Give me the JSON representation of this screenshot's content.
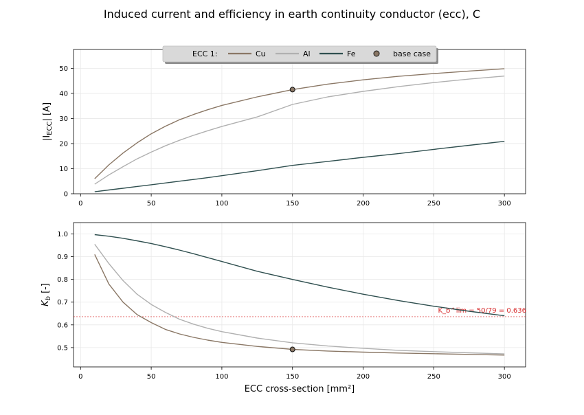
{
  "figure": {
    "title": "Induced current and efficiency in earth continuity conductor (ecc), C",
    "xlabel": "ECC cross-section  [mm²]"
  },
  "legend": {
    "title": "ECC 1:",
    "entries": [
      {
        "label": "Cu",
        "color": "#8a7765",
        "kind": "line"
      },
      {
        "label": "Al",
        "color": "#b0b0b0",
        "kind": "line"
      },
      {
        "label": "Fe",
        "color": "#2f4f4f",
        "kind": "line"
      },
      {
        "label": "base case",
        "color": "#8a7765",
        "kind": "marker"
      }
    ]
  },
  "chart_data": [
    {
      "type": "line",
      "ylabel": "|I_ECC|  [A]",
      "xlim": [
        -5,
        315
      ],
      "ylim": [
        0,
        57.5
      ],
      "xticks": [
        0,
        50,
        100,
        150,
        200,
        250,
        300
      ],
      "yticks": [
        0,
        10,
        20,
        30,
        40,
        50
      ],
      "x": [
        10,
        20,
        30,
        40,
        50,
        60,
        70,
        80,
        90,
        100,
        125,
        150,
        175,
        200,
        225,
        250,
        275,
        300
      ],
      "series": [
        {
          "name": "Cu",
          "color": "#8a7765",
          "values": [
            6.0,
            11.5,
            16.2,
            20.3,
            23.9,
            26.9,
            29.5,
            31.6,
            33.5,
            35.2,
            38.6,
            41.5,
            43.7,
            45.4,
            46.8,
            47.9,
            48.9,
            49.8
          ]
        },
        {
          "name": "Al",
          "color": "#b0b0b0",
          "values": [
            3.8,
            7.5,
            10.8,
            13.9,
            16.6,
            19.1,
            21.3,
            23.3,
            25.1,
            26.8,
            30.6,
            35.6,
            38.6,
            40.8,
            42.7,
            44.3,
            45.7,
            46.9
          ]
        },
        {
          "name": "Fe",
          "color": "#2f4f4f",
          "values": [
            0.8,
            1.5,
            2.2,
            2.9,
            3.6,
            4.3,
            5.0,
            5.7,
            6.4,
            7.2,
            9.2,
            11.3,
            12.9,
            14.5,
            16.0,
            17.7,
            19.3,
            20.9
          ]
        }
      ],
      "base_case": {
        "x": 150,
        "y": 41.5
      }
    },
    {
      "type": "line",
      "ylabel": "K_b  [-]",
      "xlim": [
        -5,
        315
      ],
      "ylim": [
        0.415,
        1.05
      ],
      "xticks": [
        0,
        50,
        100,
        150,
        200,
        250,
        300
      ],
      "yticks": [
        0.5,
        0.6,
        0.7,
        0.8,
        0.9,
        1.0
      ],
      "x": [
        10,
        20,
        30,
        40,
        50,
        60,
        70,
        80,
        90,
        100,
        125,
        150,
        175,
        200,
        225,
        250,
        275,
        300
      ],
      "series": [
        {
          "name": "Cu",
          "color": "#8a7765",
          "values": [
            0.91,
            0.78,
            0.7,
            0.645,
            0.61,
            0.58,
            0.56,
            0.545,
            0.533,
            0.523,
            0.505,
            0.492,
            0.485,
            0.48,
            0.476,
            0.473,
            0.47,
            0.467
          ]
        },
        {
          "name": "Al",
          "color": "#b0b0b0",
          "values": [
            0.955,
            0.87,
            0.795,
            0.735,
            0.69,
            0.655,
            0.625,
            0.603,
            0.585,
            0.57,
            0.542,
            0.521,
            0.507,
            0.497,
            0.488,
            0.482,
            0.477,
            0.472
          ]
        },
        {
          "name": "Fe",
          "color": "#2f4f4f",
          "values": [
            0.997,
            0.99,
            0.981,
            0.97,
            0.958,
            0.944,
            0.929,
            0.913,
            0.896,
            0.879,
            0.836,
            0.8,
            0.766,
            0.735,
            0.707,
            0.682,
            0.66,
            0.64
          ]
        }
      ],
      "base_case": {
        "x": 150,
        "y": 0.492
      },
      "reference_line": {
        "y": 0.636,
        "color": "#d62728",
        "label": "K_b^lim = 50/79 = 0.636"
      }
    }
  ]
}
